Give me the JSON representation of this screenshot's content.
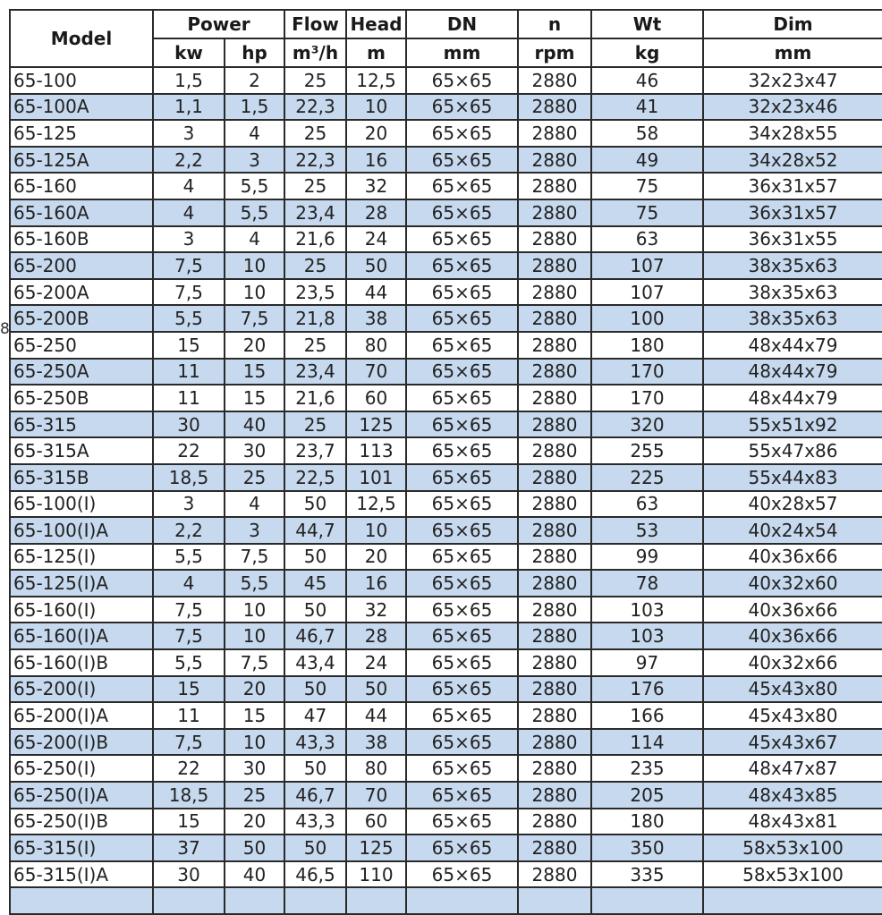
{
  "stray_text": "8",
  "header": {
    "model": "Model",
    "power": "Power",
    "flow": "Flow",
    "head": "Head",
    "dn": "DN",
    "n": "n",
    "wt": "Wt",
    "dim": "Dim",
    "units": [
      "kw",
      "hp",
      "m³/h",
      "m",
      "mm",
      "rpm",
      "kg",
      "mm"
    ]
  },
  "alt_row_color": "#c6d9ee",
  "rows": [
    [
      "65-100",
      "1,5",
      "2",
      "25",
      "12,5",
      "65×65",
      "2880",
      "46",
      "32x23x47"
    ],
    [
      "65-100A",
      "1,1",
      "1,5",
      "22,3",
      "10",
      "65×65",
      "2880",
      "41",
      "32x23x46"
    ],
    [
      "65-125",
      "3",
      "4",
      "25",
      "20",
      "65×65",
      "2880",
      "58",
      "34x28x55"
    ],
    [
      "65-125A",
      "2,2",
      "3",
      "22,3",
      "16",
      "65×65",
      "2880",
      "49",
      "34x28x52"
    ],
    [
      "65-160",
      "4",
      "5,5",
      "25",
      "32",
      "65×65",
      "2880",
      "75",
      "36x31x57"
    ],
    [
      "65-160A",
      "4",
      "5,5",
      "23,4",
      "28",
      "65×65",
      "2880",
      "75",
      "36x31x57"
    ],
    [
      "65-160B",
      "3",
      "4",
      "21,6",
      "24",
      "65×65",
      "2880",
      "63",
      "36x31x55"
    ],
    [
      "65-200",
      "7,5",
      "10",
      "25",
      "50",
      "65×65",
      "2880",
      "107",
      "38x35x63"
    ],
    [
      "65-200A",
      "7,5",
      "10",
      "23,5",
      "44",
      "65×65",
      "2880",
      "107",
      "38x35x63"
    ],
    [
      "65-200B",
      "5,5",
      "7,5",
      "21,8",
      "38",
      "65×65",
      "2880",
      "100",
      "38x35x63"
    ],
    [
      "65-250",
      "15",
      "20",
      "25",
      "80",
      "65×65",
      "2880",
      "180",
      "48x44x79"
    ],
    [
      "65-250A",
      "11",
      "15",
      "23,4",
      "70",
      "65×65",
      "2880",
      "170",
      "48x44x79"
    ],
    [
      "65-250B",
      "11",
      "15",
      "21,6",
      "60",
      "65×65",
      "2880",
      "170",
      "48x44x79"
    ],
    [
      "65-315",
      "30",
      "40",
      "25",
      "125",
      "65×65",
      "2880",
      "320",
      "55x51x92"
    ],
    [
      "65-315A",
      "22",
      "30",
      "23,7",
      "113",
      "65×65",
      "2880",
      "255",
      "55x47x86"
    ],
    [
      "65-315B",
      "18,5",
      "25",
      "22,5",
      "101",
      "65×65",
      "2880",
      "225",
      "55x44x83"
    ],
    [
      "65-100(I)",
      "3",
      "4",
      "50",
      "12,5",
      "65×65",
      "2880",
      "63",
      "40x28x57"
    ],
    [
      "65-100(I)A",
      "2,2",
      "3",
      "44,7",
      "10",
      "65×65",
      "2880",
      "53",
      "40x24x54"
    ],
    [
      "65-125(I)",
      "5,5",
      "7,5",
      "50",
      "20",
      "65×65",
      "2880",
      "99",
      "40x36x66"
    ],
    [
      "65-125(I)A",
      "4",
      "5,5",
      "45",
      "16",
      "65×65",
      "2880",
      "78",
      "40x32x60"
    ],
    [
      "65-160(I)",
      "7,5",
      "10",
      "50",
      "32",
      "65×65",
      "2880",
      "103",
      "40x36x66"
    ],
    [
      "65-160(I)A",
      "7,5",
      "10",
      "46,7",
      "28",
      "65×65",
      "2880",
      "103",
      "40x36x66"
    ],
    [
      "65-160(I)B",
      "5,5",
      "7,5",
      "43,4",
      "24",
      "65×65",
      "2880",
      "97",
      "40x32x66"
    ],
    [
      "65-200(I)",
      "15",
      "20",
      "50",
      "50",
      "65×65",
      "2880",
      "176",
      "45x43x80"
    ],
    [
      "65-200(I)A",
      "11",
      "15",
      "47",
      "44",
      "65×65",
      "2880",
      "166",
      "45x43x80"
    ],
    [
      "65-200(I)B",
      "7,5",
      "10",
      "43,3",
      "38",
      "65×65",
      "2880",
      "114",
      "45x43x67"
    ],
    [
      "65-250(I)",
      "22",
      "30",
      "50",
      "80",
      "65×65",
      "2880",
      "235",
      "48x47x87"
    ],
    [
      "65-250(I)A",
      "18,5",
      "25",
      "46,7",
      "70",
      "65×65",
      "2880",
      "205",
      "48x43x85"
    ],
    [
      "65-250(I)B",
      "15",
      "20",
      "43,3",
      "60",
      "65×65",
      "2880",
      "180",
      "48x43x81"
    ],
    [
      "65-315(I)",
      "37",
      "50",
      "50",
      "125",
      "65×65",
      "2880",
      "350",
      "58x53x100"
    ],
    [
      "65-315(I)A",
      "30",
      "40",
      "46,5",
      "110",
      "65×65",
      "2880",
      "335",
      "58x53x100"
    ],
    [
      "",
      "",
      "",
      "",
      "",
      "",
      "",
      "",
      ""
    ]
  ]
}
